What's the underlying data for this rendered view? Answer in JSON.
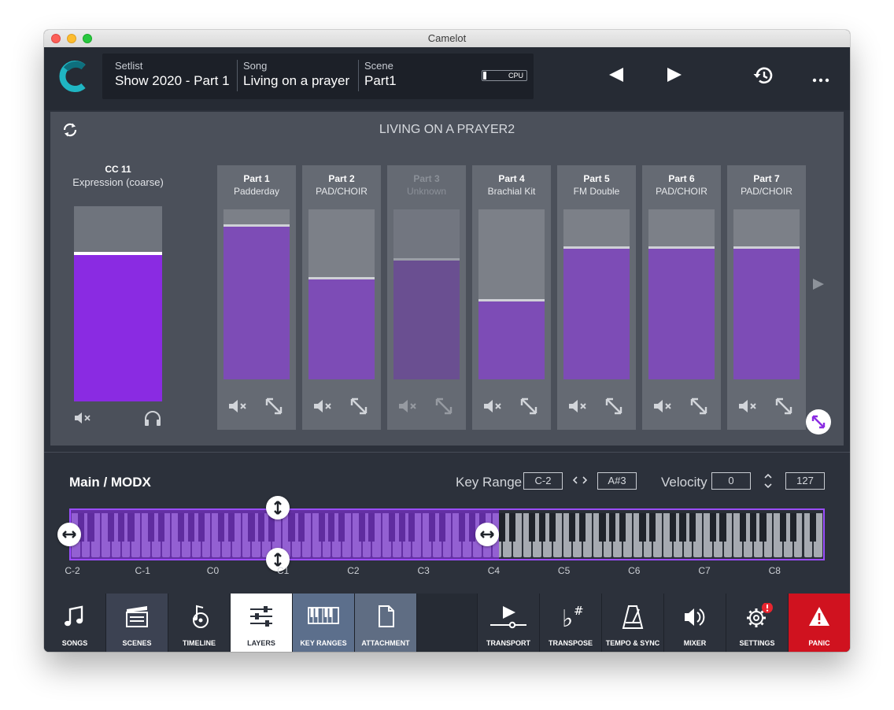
{
  "window": {
    "title": "Camelot"
  },
  "header": {
    "setlist": {
      "label": "Setlist",
      "value": "Show 2020 - Part 1"
    },
    "song": {
      "label": "Song",
      "value": "Living on a prayer"
    },
    "scene": {
      "label": "Scene",
      "value": "Part1"
    },
    "cpu": {
      "label": "CPU",
      "level": 0.08
    },
    "icons": [
      "camelot-logo",
      "previous-icon",
      "next-icon",
      "history-icon",
      "more-icon"
    ]
  },
  "panel": {
    "title": "LIVING ON A PRAYER2",
    "cc": {
      "name": "CC 11",
      "description": "Expression (coarse)",
      "level": 0.75
    },
    "parts": [
      {
        "name": "Part 1",
        "sound": "Padderday",
        "level": 0.9,
        "enabled": true
      },
      {
        "name": "Part 2",
        "sound": "PAD/CHOIR",
        "level": 0.59,
        "enabled": true
      },
      {
        "name": "Part 3",
        "sound": "Unknown",
        "level": 0.7,
        "enabled": false
      },
      {
        "name": "Part 4",
        "sound": "Brachial Kit",
        "level": 0.46,
        "enabled": true
      },
      {
        "name": "Part 5",
        "sound": "FM Double",
        "level": 0.77,
        "enabled": true
      },
      {
        "name": "Part 6",
        "sound": "PAD/CHOIR",
        "level": 0.77,
        "enabled": true
      },
      {
        "name": "Part 7",
        "sound": "PAD/CHOIR",
        "level": 0.77,
        "enabled": true
      }
    ]
  },
  "keyrange": {
    "title": "Main / MODX",
    "key_range_label": "Key Range",
    "low": "C-2",
    "high": "A#3",
    "velocity_label": "Velocity",
    "vel_low": "0",
    "vel_high": "127",
    "octaves": [
      "C-2",
      "C-1",
      "C0",
      "C1",
      "C2",
      "C3",
      "C4",
      "C5",
      "C6",
      "C7",
      "C8"
    ]
  },
  "tabs": [
    {
      "label": "SONGS",
      "icon": "music-note-icon"
    },
    {
      "label": "SCENES",
      "icon": "clapperboard-icon"
    },
    {
      "label": "TIMELINE",
      "icon": "timeline-icon"
    },
    {
      "label": "LAYERS",
      "icon": "sliders-icon"
    },
    {
      "label": "KEY RANGES",
      "icon": "keyboard-icon"
    },
    {
      "label": "ATTACHMENT",
      "icon": "document-icon"
    },
    {
      "label": "TRANSPORT",
      "icon": "play-icon"
    },
    {
      "label": "TRANSPOSE",
      "icon": "flat-sharp-icon"
    },
    {
      "label": "TEMPO & SYNC",
      "icon": "metronome-icon"
    },
    {
      "label": "MIXER",
      "icon": "speaker-icon"
    },
    {
      "label": "SETTINGS",
      "icon": "gear-icon"
    },
    {
      "label": "PANIC",
      "icon": "warning-icon"
    }
  ],
  "colors": {
    "accent": "#8a2be2",
    "part_fill": "#7d4cb6",
    "panic": "#d0121f",
    "logo": "#1fb5c2"
  }
}
